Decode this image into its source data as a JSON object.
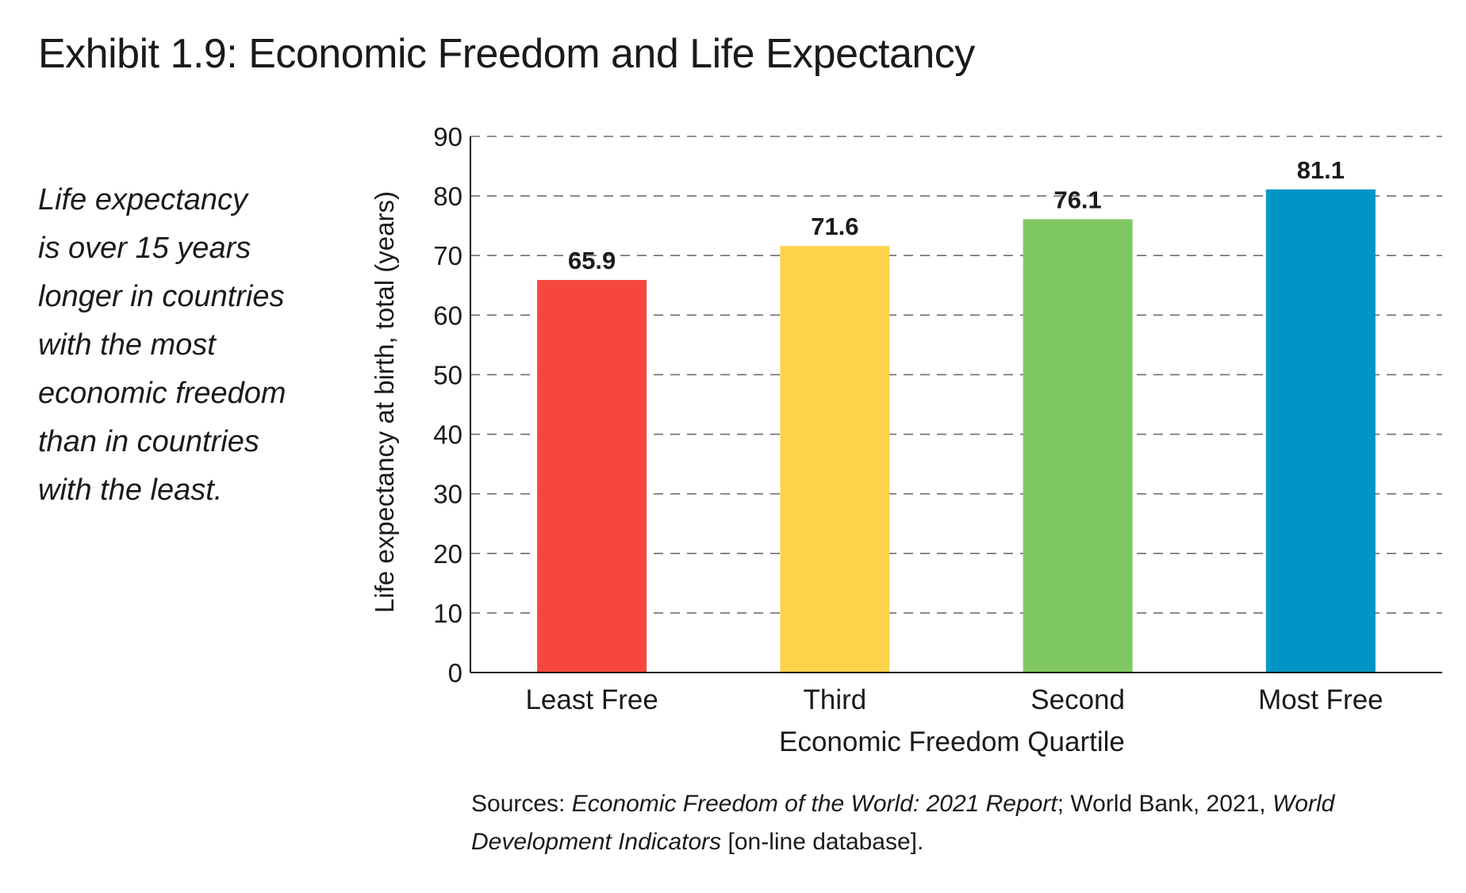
{
  "title": "Exhibit 1.9: Economic Freedom and Life Expectancy",
  "callout": {
    "lines": [
      "Life expectancy",
      "is over 15 years",
      "longer in countries",
      "with the most",
      "economic freedom",
      "than in countries",
      "with the least."
    ]
  },
  "sources": {
    "prefix": "Sources: ",
    "report": "Economic Freedom of the World: 2021 Report",
    "middle": "; World Bank, 2021, ",
    "indicators_1": "World",
    "indicators_2": "Development Indicators",
    "suffix": " [on-line database]."
  },
  "colors": {
    "least_free": "#f5473d",
    "third": "#fcd34a",
    "second": "#80c962",
    "most_free": "#0095c6",
    "grid": "#6e6e6e",
    "axis": "#1a1a1a"
  },
  "chart_data": {
    "type": "bar",
    "categories": [
      "Least Free",
      "Third",
      "Second",
      "Most Free"
    ],
    "values": [
      65.9,
      71.6,
      76.1,
      81.1
    ],
    "data_labels": [
      "65.9",
      "71.6",
      "76.1",
      "81.1"
    ],
    "xlabel": "Economic Freedom Quartile",
    "ylabel": "Life expectancy at birth, total (years)",
    "ylim": [
      0,
      90
    ],
    "yticks": [
      0,
      10,
      20,
      30,
      40,
      50,
      60,
      70,
      80,
      90
    ],
    "grid": true,
    "grid_style": "dashed",
    "legend": false
  }
}
